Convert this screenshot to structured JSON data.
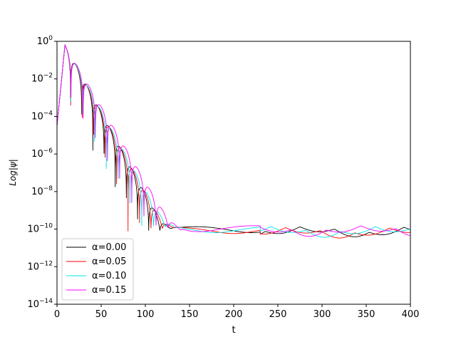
{
  "chart_data": {
    "type": "line",
    "xlabel": "t",
    "ylabel": "Log|ψ|",
    "xlim": [
      0,
      400
    ],
    "ylim_log10": [
      -14,
      0
    ],
    "log_y": true,
    "grid": false,
    "legend_position": "lower-left",
    "x_ticks": [
      "0",
      "50",
      "100",
      "150",
      "200",
      "250",
      "300",
      "350",
      "400"
    ],
    "y_ticks": [
      {
        "base": "10",
        "exp": "0"
      },
      {
        "base": "10",
        "exp": "−2"
      },
      {
        "base": "10",
        "exp": "−4"
      },
      {
        "base": "10",
        "exp": "−6"
      },
      {
        "base": "10",
        "exp": "−8"
      },
      {
        "base": "10",
        "exp": "−10"
      },
      {
        "base": "10",
        "exp": "−12"
      },
      {
        "base": "10",
        "exp": "−14"
      }
    ],
    "series": [
      {
        "name": "α=0.00",
        "color": "#000000",
        "omega": 0.2485,
        "decay": 0.0872,
        "floor": -10.0,
        "peak_time": 9
      },
      {
        "name": "α=0.05",
        "color": "#ff0000",
        "omega": 0.242,
        "decay": 0.0865,
        "floor": -10.05,
        "peak_time": 9
      },
      {
        "name": "α=0.10",
        "color": "#00e5e5",
        "omega": 0.235,
        "decay": 0.085,
        "floor": -10.0,
        "peak_time": 9
      },
      {
        "name": "α=0.15",
        "color": "#ff00ff",
        "omega": 0.2285,
        "decay": 0.08,
        "floor": -9.95,
        "peak_time": 9
      }
    ]
  }
}
